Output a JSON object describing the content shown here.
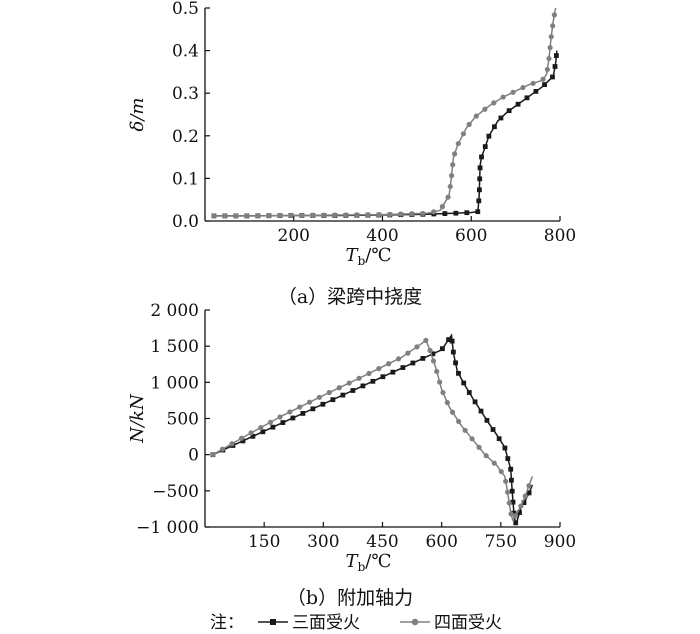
{
  "figure_note": {
    "prefix": "注：",
    "legend": [
      "三面受火",
      "四面受火"
    ]
  },
  "colors": {
    "three_side": "#1a1a1a",
    "four_side": "#808080",
    "axis": "#111111"
  },
  "chart_data": [
    {
      "type": "line",
      "caption": "（a）梁跨中挠度",
      "xlabel": "Tb/℃",
      "xlabel_main": "T",
      "xlabel_sub": "b",
      "xlabel_unit": "/℃",
      "ylabel": "δ/m",
      "xlim": [
        0,
        800
      ],
      "ylim": [
        0,
        0.5
      ],
      "x_ticks": [
        "200",
        "400",
        "600",
        "800"
      ],
      "x_tick_values": [
        200,
        400,
        600,
        800
      ],
      "y_ticks": [
        "0.0",
        "0.1",
        "0.2",
        "0.3",
        "0.4",
        "0.5"
      ],
      "y_tick_values": [
        0,
        0.1,
        0.2,
        0.3,
        0.4,
        0.5
      ],
      "grid": false,
      "series": [
        {
          "name": "三面受火",
          "marker": "square",
          "x": [
            20,
            100,
            200,
            300,
            400,
            500,
            560,
            600,
            615,
            618,
            620,
            623,
            630,
            640,
            660,
            680,
            700,
            720,
            740,
            760,
            775,
            785,
            790,
            793
          ],
          "y": [
            0.012,
            0.012,
            0.013,
            0.013,
            0.014,
            0.016,
            0.018,
            0.02,
            0.022,
            0.06,
            0.13,
            0.15,
            0.17,
            0.2,
            0.235,
            0.255,
            0.27,
            0.285,
            0.3,
            0.315,
            0.33,
            0.34,
            0.37,
            0.4
          ]
        },
        {
          "name": "四面受火",
          "marker": "circle",
          "x": [
            20,
            100,
            200,
            300,
            400,
            500,
            530,
            550,
            555,
            560,
            570,
            590,
            610,
            640,
            670,
            700,
            730,
            760,
            770,
            775,
            780,
            785,
            790
          ],
          "y": [
            0.012,
            0.012,
            0.013,
            0.014,
            0.015,
            0.018,
            0.025,
            0.06,
            0.1,
            0.15,
            0.18,
            0.22,
            0.245,
            0.27,
            0.29,
            0.305,
            0.32,
            0.33,
            0.345,
            0.38,
            0.43,
            0.47,
            0.5
          ]
        }
      ]
    },
    {
      "type": "line",
      "caption": "（b）附加轴力",
      "xlabel": "Tb/℃",
      "xlabel_main": "T",
      "xlabel_sub": "b",
      "xlabel_unit": "/℃",
      "ylabel": "N/kN",
      "xlim": [
        0,
        900
      ],
      "ylim": [
        -1000,
        2000
      ],
      "x_ticks": [
        "150",
        "300",
        "450",
        "600",
        "750",
        "900"
      ],
      "x_tick_values": [
        150,
        300,
        450,
        600,
        750,
        900
      ],
      "y_ticks": [
        "−1 000",
        "−500",
        "0",
        "500",
        "1 000",
        "1 500",
        "2 000"
      ],
      "y_tick_values": [
        -1000,
        -500,
        0,
        500,
        1000,
        1500,
        2000
      ],
      "grid": false,
      "series": [
        {
          "name": "三面受火",
          "marker": "square",
          "x": [
            20,
            100,
            200,
            300,
            400,
            500,
            600,
            625,
            630,
            640,
            660,
            680,
            700,
            720,
            740,
            760,
            775,
            780,
            783,
            787,
            792,
            800,
            810,
            820,
            830
          ],
          "y": [
            0,
            200,
            450,
            700,
            950,
            1200,
            1450,
            1650,
            1400,
            1150,
            950,
            770,
            600,
            430,
            270,
            100,
            -200,
            -600,
            -800,
            -950,
            -900,
            -750,
            -650,
            -550,
            -420
          ]
        },
        {
          "name": "四面受火",
          "marker": "circle",
          "x": [
            20,
            100,
            200,
            300,
            400,
            500,
            540,
            560,
            570,
            585,
            600,
            620,
            650,
            680,
            710,
            740,
            760,
            765,
            770,
            775,
            780,
            790,
            800,
            810,
            820,
            830
          ],
          "y": [
            0,
            250,
            550,
            820,
            1080,
            1350,
            1500,
            1580,
            1450,
            1200,
            900,
            650,
            400,
            200,
            0,
            -150,
            -300,
            -450,
            -620,
            -800,
            -900,
            -820,
            -720,
            -600,
            -450,
            -300
          ]
        }
      ]
    }
  ]
}
